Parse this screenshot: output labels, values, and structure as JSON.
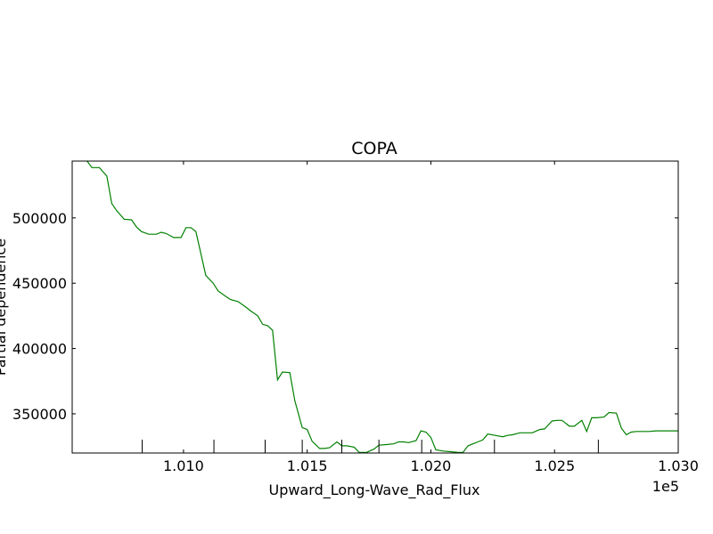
{
  "chart_data": {
    "type": "line",
    "title": "COPA",
    "xlabel": "Upward_Long-Wave_Rad_Flux",
    "ylabel": "Partial dependence",
    "x_offset_label": "1e5",
    "xlim": [
      100550,
      103000
    ],
    "ylim": [
      320000,
      543500
    ],
    "grid": false,
    "legend": "none",
    "colors": {
      "line": "#008000",
      "axes": "#000000",
      "background": "#ffffff"
    },
    "x_ticks": [
      101000,
      101500,
      102000,
      102500,
      103000
    ],
    "x_tick_labels": [
      "1.010",
      "1.015",
      "1.020",
      "1.025",
      "1.030"
    ],
    "y_ticks": [
      350000,
      400000,
      450000,
      500000
    ],
    "y_tick_labels": [
      "350000",
      "400000",
      "450000",
      "500000"
    ],
    "rug_x": [
      100833,
      101123,
      101330,
      101480,
      101640,
      101790,
      101963,
      102257,
      102677
    ],
    "series": [
      {
        "x": [
          100610,
          100630,
          100660,
          100690,
          100710,
          100730,
          100760,
          100790,
          100810,
          100830,
          100860,
          100890,
          100910,
          100930,
          100960,
          100990,
          101010,
          101030,
          101050,
          101070,
          101090,
          101120,
          101140,
          101170,
          101190,
          101220,
          101250,
          101270,
          101300,
          101320,
          101340,
          101360,
          101380,
          101400,
          101430,
          101450,
          101480,
          101500,
          101520,
          101550,
          101570,
          101590,
          101620,
          101640,
          101660,
          101690,
          101710,
          101740,
          101770,
          101790,
          101820,
          101850,
          101870,
          101890,
          101910,
          101940,
          101960,
          101980,
          102000,
          102020,
          102050,
          102080,
          102110,
          102130,
          102150,
          102170,
          102190,
          102210,
          102230,
          102260,
          102290,
          102310,
          102330,
          102360,
          102390,
          102410,
          102440,
          102460,
          102490,
          102510,
          102530,
          102560,
          102580,
          102610,
          102630,
          102650,
          102670,
          102700,
          102720,
          102750,
          102770,
          102790,
          102810,
          102830,
          102850,
          102880,
          102910,
          102950,
          103000
        ],
        "y": [
          543500,
          538500,
          538500,
          532000,
          511000,
          505500,
          499000,
          498500,
          493000,
          489500,
          487500,
          487500,
          489000,
          488000,
          485000,
          485000,
          492500,
          492500,
          489500,
          473000,
          456000,
          450000,
          444000,
          440000,
          437500,
          436000,
          432000,
          429000,
          425000,
          418500,
          417500,
          414000,
          376000,
          382000,
          381500,
          360000,
          339500,
          338000,
          329000,
          323500,
          323500,
          324000,
          328500,
          325500,
          325500,
          324500,
          320500,
          320500,
          323000,
          326000,
          326500,
          327000,
          328500,
          328500,
          328000,
          329500,
          337000,
          336000,
          332000,
          322500,
          321500,
          321000,
          320500,
          320500,
          325500,
          327000,
          328500,
          330000,
          334500,
          333500,
          332500,
          333500,
          334000,
          335500,
          335500,
          335500,
          338000,
          338500,
          344500,
          345000,
          345000,
          340500,
          340500,
          345000,
          336500,
          347000,
          347000,
          347500,
          351000,
          350500,
          339000,
          334000,
          336000,
          336500,
          336500,
          336500,
          337000,
          337000,
          337000
        ]
      }
    ]
  }
}
